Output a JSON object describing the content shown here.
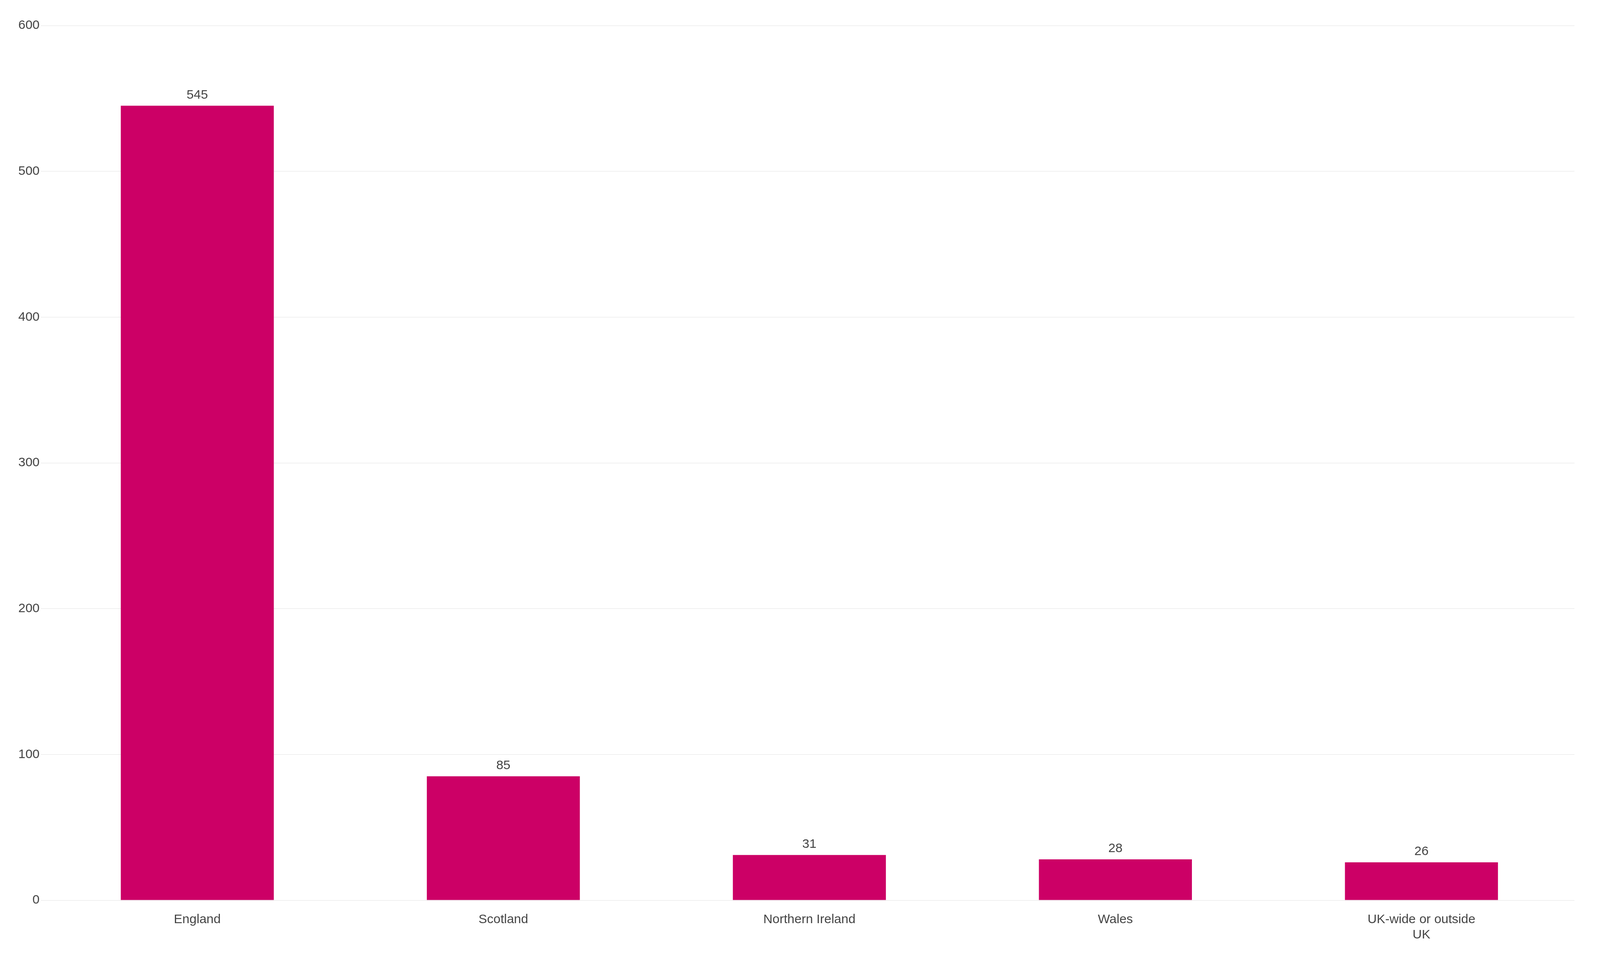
{
  "chart_data": {
    "type": "bar",
    "categories": [
      "England",
      "Scotland",
      "Northern Ireland",
      "Wales",
      "UK-wide or outside\nUK"
    ],
    "values": [
      545,
      85,
      31,
      28,
      26
    ],
    "color": "#CC0066",
    "ylim": [
      0,
      600
    ],
    "yticks": [
      0,
      100,
      200,
      300,
      400,
      500,
      600
    ],
    "grid": true,
    "data_labels": true
  }
}
